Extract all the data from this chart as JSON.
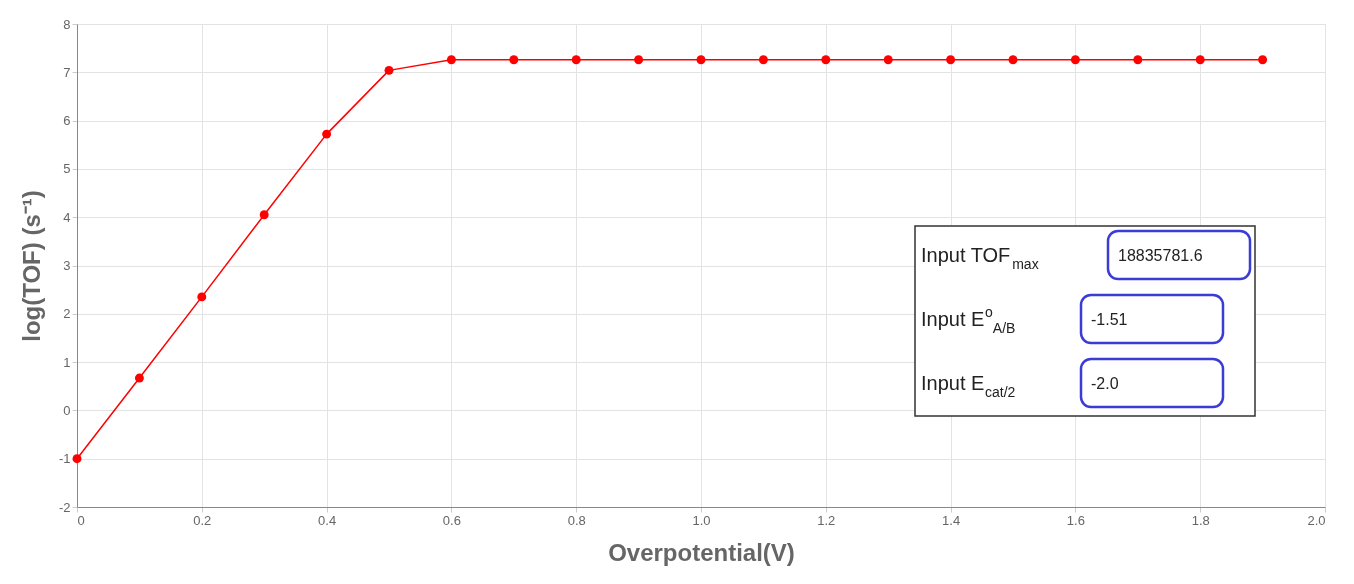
{
  "chart_data": {
    "type": "line",
    "xlabel": "Overpotential(V)",
    "ylabel": "log(TOF) (s⁻¹)",
    "x": [
      0,
      0.1,
      0.2,
      0.3,
      0.4,
      0.5,
      0.6,
      0.7,
      0.8,
      0.9,
      1.0,
      1.1,
      1.2,
      1.3,
      1.4,
      1.5,
      1.6,
      1.7,
      1.8,
      1.9
    ],
    "series": [
      {
        "color": "#ff0000",
        "values": [
          -1,
          0.67,
          2.35,
          4.05,
          5.72,
          7.04,
          7.26,
          7.26,
          7.26,
          7.26,
          7.26,
          7.26,
          7.26,
          7.26,
          7.26,
          7.26,
          7.26,
          7.26,
          7.26,
          7.26
        ]
      }
    ],
    "xlim": [
      0,
      2
    ],
    "xticks": [
      0,
      0.2,
      0.4,
      0.6,
      0.8,
      {
        "value": 1,
        "label": "1.0"
      },
      1.2,
      1.4,
      1.6,
      1.8,
      {
        "value": 2,
        "label": "2.0"
      }
    ],
    "ylim": [
      -2,
      8
    ],
    "yticks": [
      -2,
      -1,
      0,
      1,
      2,
      3,
      4,
      5,
      6,
      7,
      8
    ],
    "grid": true,
    "marker": "circle",
    "line_style": "solid",
    "annotations": [
      "Input TOF$_{max}$",
      "18835781.6",
      "Input E$^{o}$$_{A/B}$",
      "-1.51",
      "Input E$_{cat/2}$",
      "-2.0"
    ]
  }
}
